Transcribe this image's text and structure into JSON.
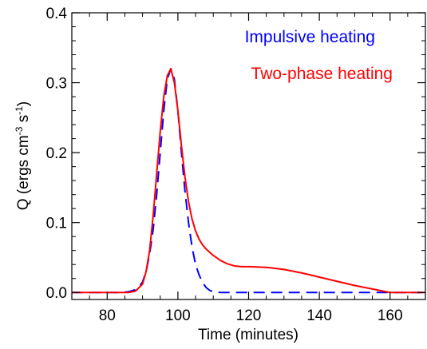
{
  "chart_data": {
    "type": "line",
    "xlabel": "Time (minutes)",
    "ylabel_parts": {
      "base": "Q (ergs cm",
      "exp1": "-3",
      "mid": " s",
      "exp2": "-1",
      "end": ")"
    },
    "xlim": [
      70,
      170
    ],
    "ylim": [
      -0.01,
      0.4
    ],
    "xticks": [
      80,
      100,
      120,
      140,
      160
    ],
    "yticks": [
      0.0,
      0.1,
      0.2,
      0.3,
      0.4
    ],
    "xtick_labels": [
      "80",
      "100",
      "120",
      "140",
      "160"
    ],
    "ytick_labels": [
      "0.0",
      "0.1",
      "0.2",
      "0.3",
      "0.4"
    ],
    "legend_placement": "top-right",
    "series": [
      {
        "name": "Impulsive heating",
        "color": "#0000ff",
        "style": "dashed",
        "x": [
          70,
          84,
          86,
          88,
          89,
          90,
          91,
          92,
          93,
          94,
          95,
          96,
          97,
          98,
          99,
          100,
          101,
          102,
          103,
          104,
          105,
          106,
          107,
          108,
          109,
          110,
          112,
          114,
          120,
          140,
          160,
          170
        ],
        "y": [
          0,
          0,
          0.001,
          0.004,
          0.008,
          0.015,
          0.03,
          0.055,
          0.09,
          0.14,
          0.2,
          0.26,
          0.305,
          0.32,
          0.305,
          0.26,
          0.2,
          0.145,
          0.1,
          0.065,
          0.04,
          0.025,
          0.014,
          0.007,
          0.003,
          0.001,
          0,
          0,
          0,
          0,
          0,
          0
        ]
      },
      {
        "name": "Two-phase heating",
        "color": "#ff0000",
        "style": "solid",
        "x": [
          70,
          86,
          88,
          90,
          91,
          92,
          93,
          94,
          95,
          96,
          97,
          98,
          99,
          100,
          101,
          102,
          103,
          104,
          105,
          106,
          107,
          108,
          110,
          112,
          114,
          116,
          118,
          120,
          125,
          130,
          135,
          140,
          145,
          150,
          155,
          158,
          160,
          170
        ],
        "y": [
          0,
          0,
          0.002,
          0.012,
          0.03,
          0.06,
          0.11,
          0.17,
          0.23,
          0.28,
          0.31,
          0.32,
          0.3,
          0.26,
          0.21,
          0.165,
          0.13,
          0.105,
          0.088,
          0.076,
          0.068,
          0.062,
          0.053,
          0.046,
          0.041,
          0.038,
          0.037,
          0.037,
          0.036,
          0.033,
          0.028,
          0.022,
          0.016,
          0.01,
          0.005,
          0.002,
          0,
          0
        ]
      }
    ]
  }
}
